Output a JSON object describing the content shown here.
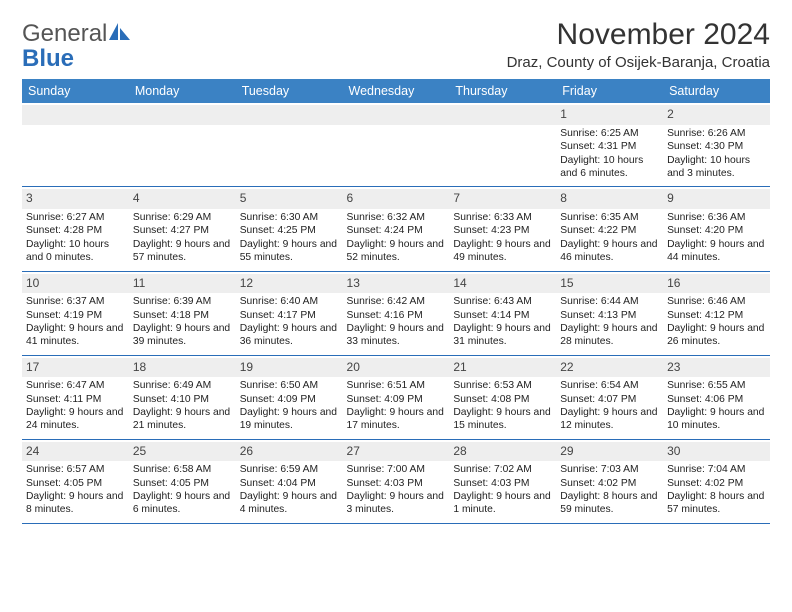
{
  "logo": {
    "word1": "General",
    "word2": "Blue"
  },
  "title": "November 2024",
  "location": "Draz, County of Osijek-Baranja, Croatia",
  "colors": {
    "header_bg": "#3b82c4",
    "header_text": "#ffffff",
    "rule": "#2a6db8",
    "daynum_bg": "#eeeeee",
    "logo_gray": "#555555",
    "logo_blue": "#2a6db8"
  },
  "day_headers": [
    "Sunday",
    "Monday",
    "Tuesday",
    "Wednesday",
    "Thursday",
    "Friday",
    "Saturday"
  ],
  "weeks": [
    [
      {
        "day": "",
        "text": ""
      },
      {
        "day": "",
        "text": ""
      },
      {
        "day": "",
        "text": ""
      },
      {
        "day": "",
        "text": ""
      },
      {
        "day": "",
        "text": ""
      },
      {
        "day": "1",
        "text": "Sunrise: 6:25 AM\nSunset: 4:31 PM\nDaylight: 10 hours and 6 minutes."
      },
      {
        "day": "2",
        "text": "Sunrise: 6:26 AM\nSunset: 4:30 PM\nDaylight: 10 hours and 3 minutes."
      }
    ],
    [
      {
        "day": "3",
        "text": "Sunrise: 6:27 AM\nSunset: 4:28 PM\nDaylight: 10 hours and 0 minutes."
      },
      {
        "day": "4",
        "text": "Sunrise: 6:29 AM\nSunset: 4:27 PM\nDaylight: 9 hours and 57 minutes."
      },
      {
        "day": "5",
        "text": "Sunrise: 6:30 AM\nSunset: 4:25 PM\nDaylight: 9 hours and 55 minutes."
      },
      {
        "day": "6",
        "text": "Sunrise: 6:32 AM\nSunset: 4:24 PM\nDaylight: 9 hours and 52 minutes."
      },
      {
        "day": "7",
        "text": "Sunrise: 6:33 AM\nSunset: 4:23 PM\nDaylight: 9 hours and 49 minutes."
      },
      {
        "day": "8",
        "text": "Sunrise: 6:35 AM\nSunset: 4:22 PM\nDaylight: 9 hours and 46 minutes."
      },
      {
        "day": "9",
        "text": "Sunrise: 6:36 AM\nSunset: 4:20 PM\nDaylight: 9 hours and 44 minutes."
      }
    ],
    [
      {
        "day": "10",
        "text": "Sunrise: 6:37 AM\nSunset: 4:19 PM\nDaylight: 9 hours and 41 minutes."
      },
      {
        "day": "11",
        "text": "Sunrise: 6:39 AM\nSunset: 4:18 PM\nDaylight: 9 hours and 39 minutes."
      },
      {
        "day": "12",
        "text": "Sunrise: 6:40 AM\nSunset: 4:17 PM\nDaylight: 9 hours and 36 minutes."
      },
      {
        "day": "13",
        "text": "Sunrise: 6:42 AM\nSunset: 4:16 PM\nDaylight: 9 hours and 33 minutes."
      },
      {
        "day": "14",
        "text": "Sunrise: 6:43 AM\nSunset: 4:14 PM\nDaylight: 9 hours and 31 minutes."
      },
      {
        "day": "15",
        "text": "Sunrise: 6:44 AM\nSunset: 4:13 PM\nDaylight: 9 hours and 28 minutes."
      },
      {
        "day": "16",
        "text": "Sunrise: 6:46 AM\nSunset: 4:12 PM\nDaylight: 9 hours and 26 minutes."
      }
    ],
    [
      {
        "day": "17",
        "text": "Sunrise: 6:47 AM\nSunset: 4:11 PM\nDaylight: 9 hours and 24 minutes."
      },
      {
        "day": "18",
        "text": "Sunrise: 6:49 AM\nSunset: 4:10 PM\nDaylight: 9 hours and 21 minutes."
      },
      {
        "day": "19",
        "text": "Sunrise: 6:50 AM\nSunset: 4:09 PM\nDaylight: 9 hours and 19 minutes."
      },
      {
        "day": "20",
        "text": "Sunrise: 6:51 AM\nSunset: 4:09 PM\nDaylight: 9 hours and 17 minutes."
      },
      {
        "day": "21",
        "text": "Sunrise: 6:53 AM\nSunset: 4:08 PM\nDaylight: 9 hours and 15 minutes."
      },
      {
        "day": "22",
        "text": "Sunrise: 6:54 AM\nSunset: 4:07 PM\nDaylight: 9 hours and 12 minutes."
      },
      {
        "day": "23",
        "text": "Sunrise: 6:55 AM\nSunset: 4:06 PM\nDaylight: 9 hours and 10 minutes."
      }
    ],
    [
      {
        "day": "24",
        "text": "Sunrise: 6:57 AM\nSunset: 4:05 PM\nDaylight: 9 hours and 8 minutes."
      },
      {
        "day": "25",
        "text": "Sunrise: 6:58 AM\nSunset: 4:05 PM\nDaylight: 9 hours and 6 minutes."
      },
      {
        "day": "26",
        "text": "Sunrise: 6:59 AM\nSunset: 4:04 PM\nDaylight: 9 hours and 4 minutes."
      },
      {
        "day": "27",
        "text": "Sunrise: 7:00 AM\nSunset: 4:03 PM\nDaylight: 9 hours and 3 minutes."
      },
      {
        "day": "28",
        "text": "Sunrise: 7:02 AM\nSunset: 4:03 PM\nDaylight: 9 hours and 1 minute."
      },
      {
        "day": "29",
        "text": "Sunrise: 7:03 AM\nSunset: 4:02 PM\nDaylight: 8 hours and 59 minutes."
      },
      {
        "day": "30",
        "text": "Sunrise: 7:04 AM\nSunset: 4:02 PM\nDaylight: 8 hours and 57 minutes."
      }
    ]
  ]
}
